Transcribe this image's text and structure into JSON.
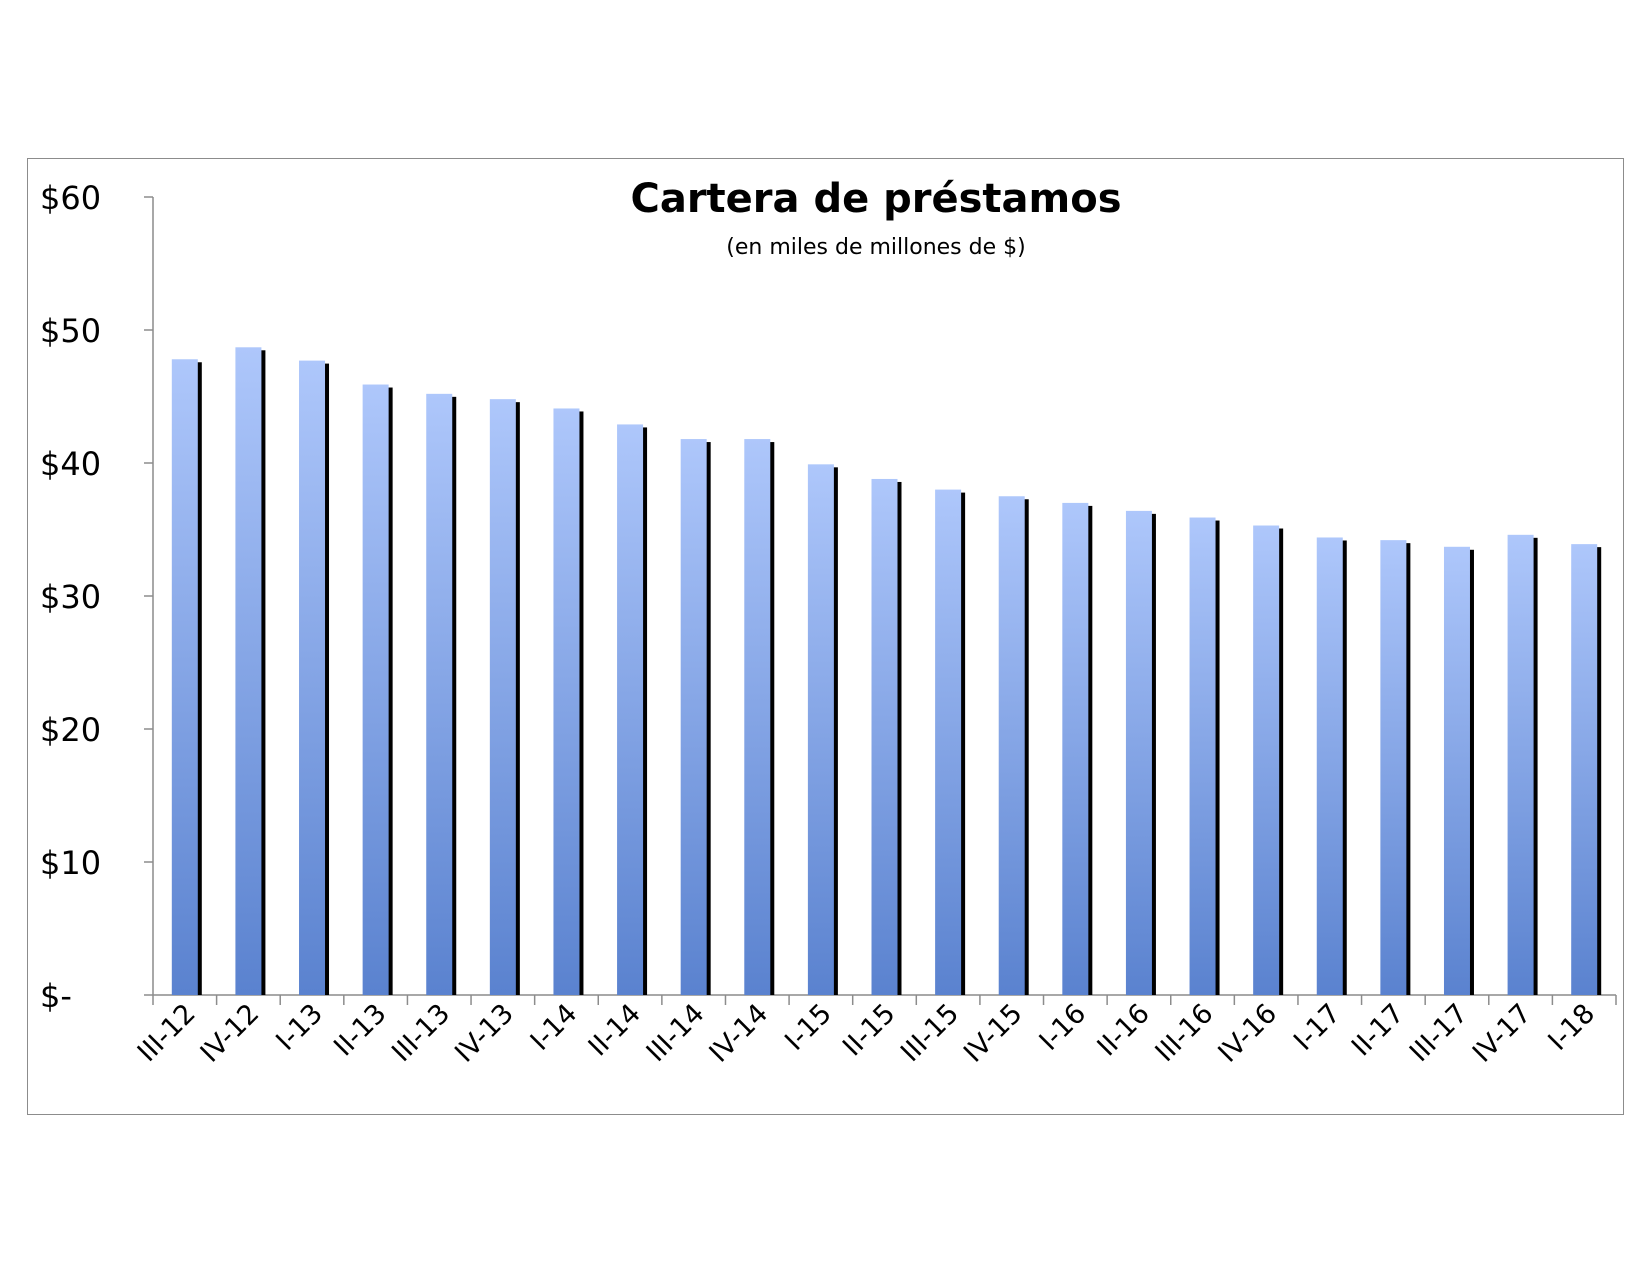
{
  "chart_data": {
    "type": "bar",
    "title": "Cartera de préstamos",
    "subtitle": "(en miles de millones  de $)",
    "xlabel": "",
    "ylabel": "",
    "ylim": [
      0,
      60
    ],
    "y_ticks": [
      0,
      10,
      20,
      30,
      40,
      50,
      60
    ],
    "y_tick_labels": [
      "$-",
      "$10",
      "$20",
      "$30",
      "$40",
      "$50",
      "$60"
    ],
    "grid": false,
    "legend": "none",
    "categories": [
      "III-12",
      "IV-12",
      "I-13",
      "II-13",
      "III-13",
      "IV-13",
      "I-14",
      "II-14",
      "III-14",
      "IV-14",
      "I-15",
      "II-15",
      "III-15",
      "IV-15",
      "I-16",
      "II-16",
      "III-16",
      "IV-16",
      "I-17",
      "II-17",
      "III-17",
      "IV-17",
      "I-18"
    ],
    "values": [
      47.8,
      48.7,
      47.7,
      45.9,
      45.2,
      44.8,
      44.1,
      42.9,
      41.8,
      41.8,
      39.9,
      38.8,
      38.0,
      37.5,
      37.0,
      36.4,
      35.9,
      35.3,
      34.4,
      34.2,
      33.7,
      34.6,
      33.9
    ],
    "colors": {
      "bar_top": "#aec7fb",
      "bar_bottom": "#5a82cf",
      "bar_shadow": "#000000",
      "axis": "#8c8c8c"
    }
  }
}
